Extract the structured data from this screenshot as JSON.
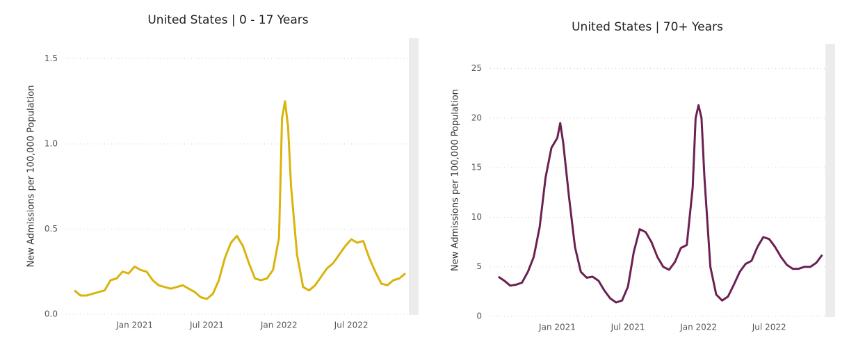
{
  "chart_data": [
    {
      "type": "line",
      "title": "United States | 0 - 17 Years",
      "y_label": "New Admissions per 100,000 Population",
      "xlim": [
        -5.7,
        23.6
      ],
      "ylim": [
        0,
        1.62
      ],
      "xticks": [
        {
          "value": 0,
          "label": "Jan 2021"
        },
        {
          "value": 6,
          "label": "Jul 2021"
        },
        {
          "value": 12,
          "label": "Jan 2022"
        },
        {
          "value": 18,
          "label": "Jul 2022"
        }
      ],
      "yticks": [
        {
          "value": 0,
          "label": "0.0"
        },
        0.5,
        {
          "value": 1,
          "label": "1.0"
        },
        {
          "value": 1.5,
          "label": "1.5"
        }
      ],
      "grid": true,
      "series": [
        {
          "color": "#d8b40c",
          "x": [
            -5,
            -4.5,
            -4,
            -3.5,
            -3,
            -2.5,
            -2,
            -1.5,
            -1,
            -0.5,
            0,
            0.5,
            1,
            1.5,
            2,
            2.5,
            3,
            3.5,
            4,
            4.5,
            5,
            5.5,
            6,
            6.5,
            7,
            7.5,
            8,
            8.5,
            9,
            9.5,
            10,
            10.5,
            11,
            11.5,
            12,
            12.25,
            12.5,
            12.75,
            13,
            13.5,
            14,
            14.5,
            15,
            15.5,
            16,
            16.5,
            17,
            17.5,
            18,
            18.5,
            19,
            19.5,
            20,
            20.5,
            21,
            21.5,
            22,
            22.5
          ],
          "values": [
            0.14,
            0.11,
            0.11,
            0.12,
            0.13,
            0.14,
            0.2,
            0.21,
            0.25,
            0.24,
            0.28,
            0.26,
            0.25,
            0.2,
            0.17,
            0.16,
            0.15,
            0.16,
            0.17,
            0.15,
            0.13,
            0.1,
            0.09,
            0.12,
            0.2,
            0.33,
            0.42,
            0.46,
            0.4,
            0.3,
            0.21,
            0.2,
            0.21,
            0.26,
            0.45,
            1.15,
            1.25,
            1.1,
            0.75,
            0.35,
            0.16,
            0.14,
            0.17,
            0.22,
            0.27,
            0.3,
            0.35,
            0.4,
            0.44,
            0.42,
            0.43,
            0.33,
            0.25,
            0.18,
            0.17,
            0.2,
            0.21,
            0.24
          ]
        }
      ]
    },
    {
      "type": "line",
      "title": "United States | 70+ Years",
      "y_label": "New Admissions per 100,000 Population",
      "xlim": [
        -5.7,
        23.6
      ],
      "ylim": [
        0,
        27.5
      ],
      "xticks": [
        {
          "value": 0,
          "label": "Jan 2021"
        },
        {
          "value": 6,
          "label": "Jul 2021"
        },
        {
          "value": 12,
          "label": "Jan 2022"
        },
        {
          "value": 18,
          "label": "Jul 2022"
        }
      ],
      "yticks": [
        0,
        5,
        10,
        15,
        20,
        25
      ],
      "grid": true,
      "series": [
        {
          "color": "#6b2152",
          "x": [
            -5,
            -4.5,
            -4,
            -3.5,
            -3,
            -2.5,
            -2,
            -1.5,
            -1,
            -0.5,
            0,
            0.25,
            0.5,
            1,
            1.5,
            2,
            2.5,
            3,
            3.5,
            4,
            4.5,
            5,
            5.5,
            6,
            6.5,
            7,
            7.5,
            8,
            8.5,
            9,
            9.5,
            10,
            10.5,
            11,
            11.5,
            11.75,
            12,
            12.25,
            12.5,
            13,
            13.5,
            14,
            14.5,
            15,
            15.5,
            16,
            16.5,
            17,
            17.5,
            18,
            18.5,
            19,
            19.5,
            20,
            20.5,
            21,
            21.5,
            22,
            22.5
          ],
          "values": [
            4,
            3.6,
            3.1,
            3.2,
            3.4,
            4.5,
            6,
            9,
            14,
            17,
            18,
            19.5,
            17.5,
            12,
            7,
            4.5,
            3.9,
            4,
            3.6,
            2.6,
            1.8,
            1.4,
            1.6,
            3,
            6.5,
            8.8,
            8.5,
            7.5,
            6,
            5,
            4.7,
            5.5,
            6.9,
            7.2,
            13,
            20,
            21.3,
            20,
            14,
            5,
            2.2,
            1.6,
            2,
            3.2,
            4.5,
            5.3,
            5.6,
            7,
            8,
            7.8,
            7,
            6,
            5.2,
            4.8,
            4.8,
            5,
            5,
            5.4,
            6.2
          ]
        }
      ]
    }
  ]
}
